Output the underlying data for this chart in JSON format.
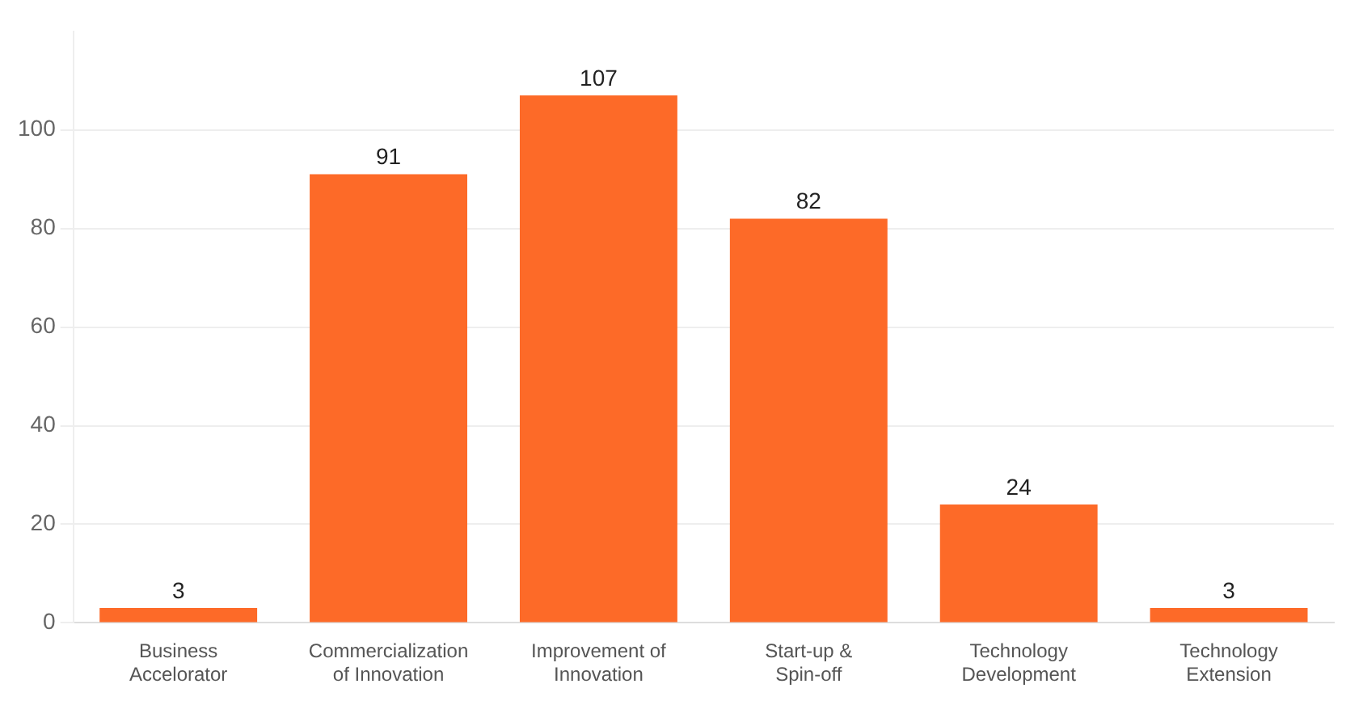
{
  "chart_data": {
    "type": "bar",
    "categories": [
      "Business Accelorator",
      "Commercialization of Innovation",
      "Improvement of Innovation",
      "Start-up & Spin-off",
      "Technology Development",
      "Technology Extension"
    ],
    "values": [
      3,
      91,
      107,
      82,
      24,
      3
    ],
    "color": "#fd6a28",
    "ylim": [
      0,
      120
    ],
    "yticks": [
      0,
      20,
      40,
      60,
      80,
      100
    ],
    "grid": "y",
    "data_labels": true,
    "legend": false
  }
}
